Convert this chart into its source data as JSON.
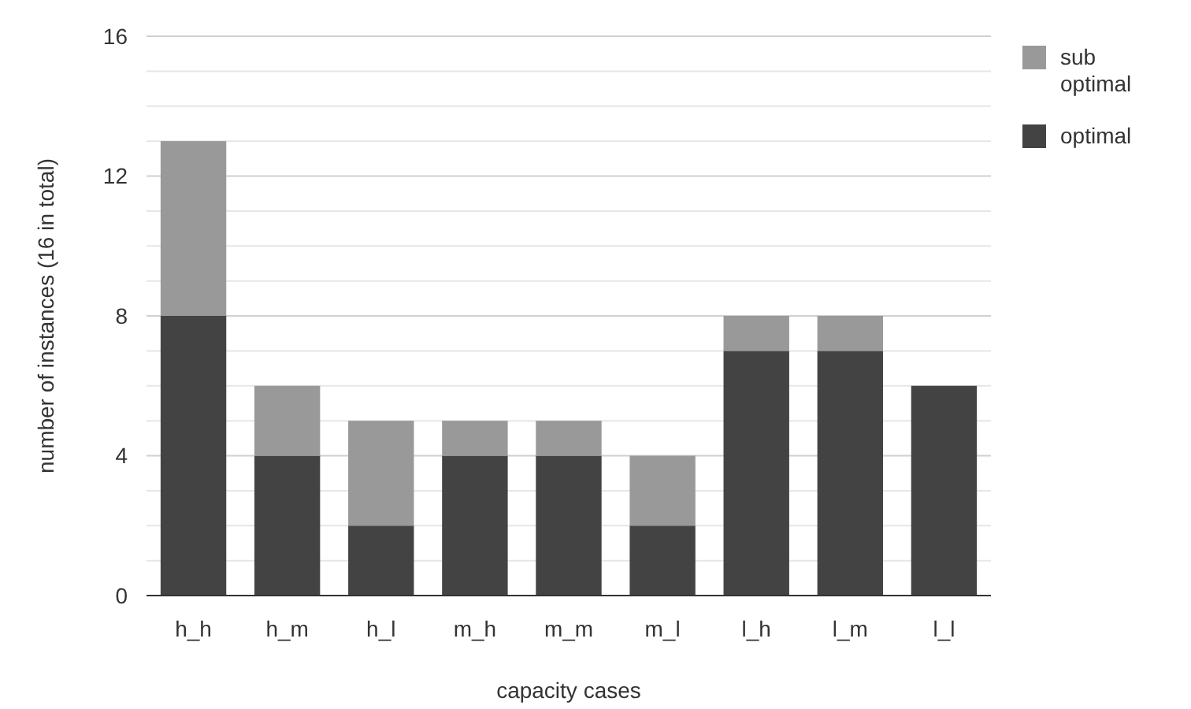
{
  "chart_data": {
    "type": "bar",
    "stacked": true,
    "xlabel": "capacity cases",
    "ylabel": "number of instances (16 in total)",
    "categories": [
      "h_h",
      "h_m",
      "h_l",
      "m_h",
      "m_m",
      "m_l",
      "l_h",
      "l_m",
      "l_l"
    ],
    "series": [
      {
        "name": "optimal",
        "color": "#434343",
        "values": [
          8,
          4,
          2,
          4,
          4,
          2,
          7,
          7,
          6
        ]
      },
      {
        "name": "sub optimal",
        "color": "#999999",
        "values": [
          5,
          2,
          3,
          1,
          1,
          2,
          1,
          1,
          0
        ]
      }
    ],
    "ylim": [
      0,
      16
    ],
    "yticks": [
      0,
      {
        "value": 1,
        "label": null
      },
      {
        "value": 2,
        "label": null
      },
      {
        "value": 3,
        "label": null
      },
      4,
      {
        "value": 5,
        "label": null
      },
      {
        "value": 6,
        "label": null
      },
      {
        "value": 7,
        "label": null
      },
      8,
      {
        "value": 9,
        "label": null
      },
      {
        "value": 10,
        "label": null
      },
      {
        "value": 11,
        "label": null
      },
      12,
      {
        "value": 13,
        "label": null
      },
      {
        "value": 14,
        "label": null
      },
      {
        "value": 15,
        "label": null
      },
      16
    ],
    "grid": "y",
    "legend": "top right"
  }
}
